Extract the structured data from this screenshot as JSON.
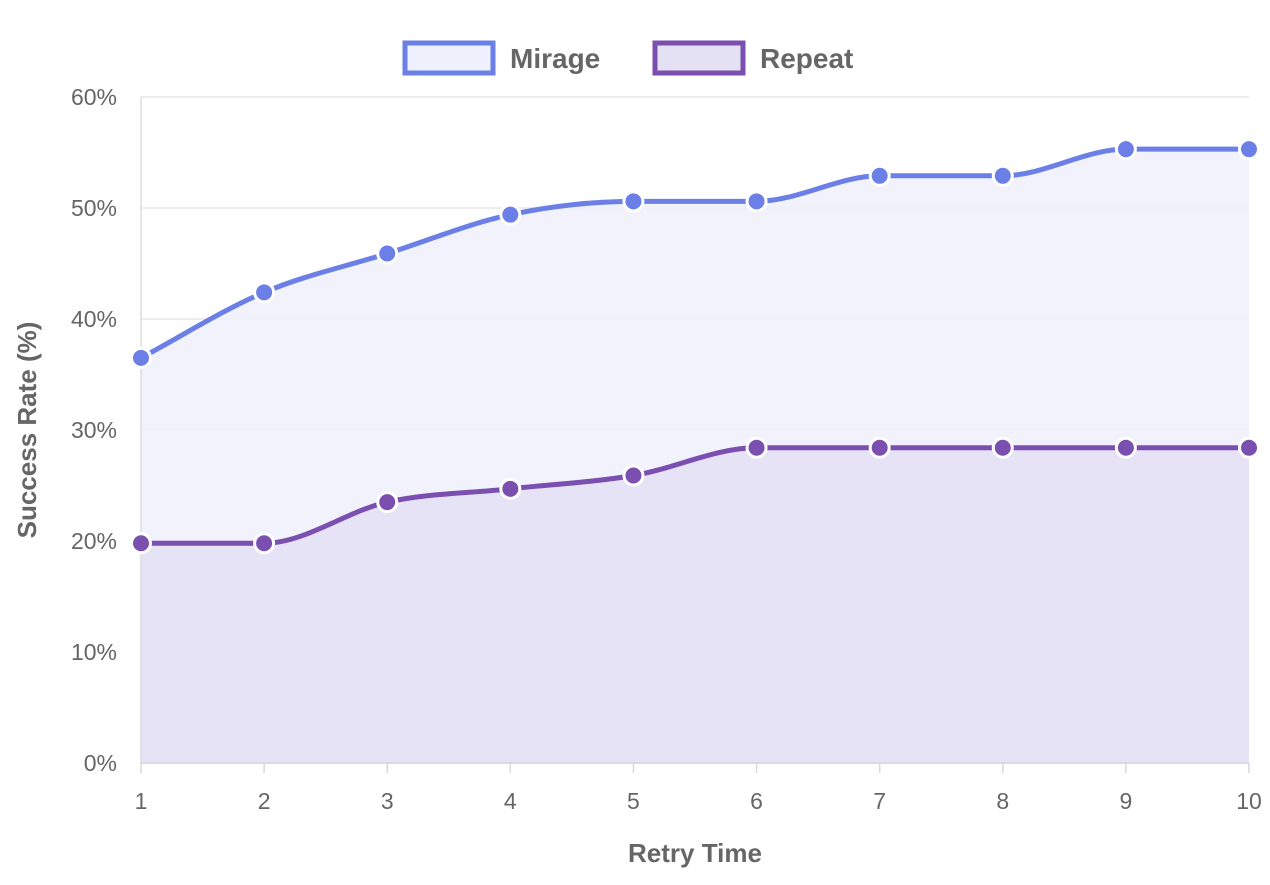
{
  "chart_data": {
    "type": "line",
    "title": "",
    "xlabel": "Retry Time",
    "ylabel": "Success Rate (%)",
    "x": [
      1,
      2,
      3,
      4,
      5,
      6,
      7,
      8,
      9,
      10
    ],
    "x_tick_labels": [
      "1",
      "2",
      "3",
      "4",
      "5",
      "6",
      "7",
      "8",
      "9",
      "10"
    ],
    "ylim": [
      0,
      60
    ],
    "y_ticks": [
      0,
      10,
      20,
      30,
      40,
      50,
      60
    ],
    "y_tick_labels": [
      "0%",
      "10%",
      "20%",
      "30%",
      "40%",
      "50%",
      "60%"
    ],
    "grid": true,
    "area_fill": true,
    "legend_position": "top",
    "series": [
      {
        "name": "Mirage",
        "color": "#6b7fe6",
        "fill": "#eef0fc",
        "values": [
          36.5,
          42.4,
          45.9,
          49.4,
          50.6,
          50.6,
          52.9,
          52.9,
          55.3,
          55.3
        ]
      },
      {
        "name": "Repeat",
        "color": "#7a4fb0",
        "fill": "#e3e1f3",
        "values": [
          19.8,
          19.8,
          23.5,
          24.7,
          25.9,
          28.4,
          28.4,
          28.4,
          28.4,
          28.4
        ]
      }
    ]
  }
}
